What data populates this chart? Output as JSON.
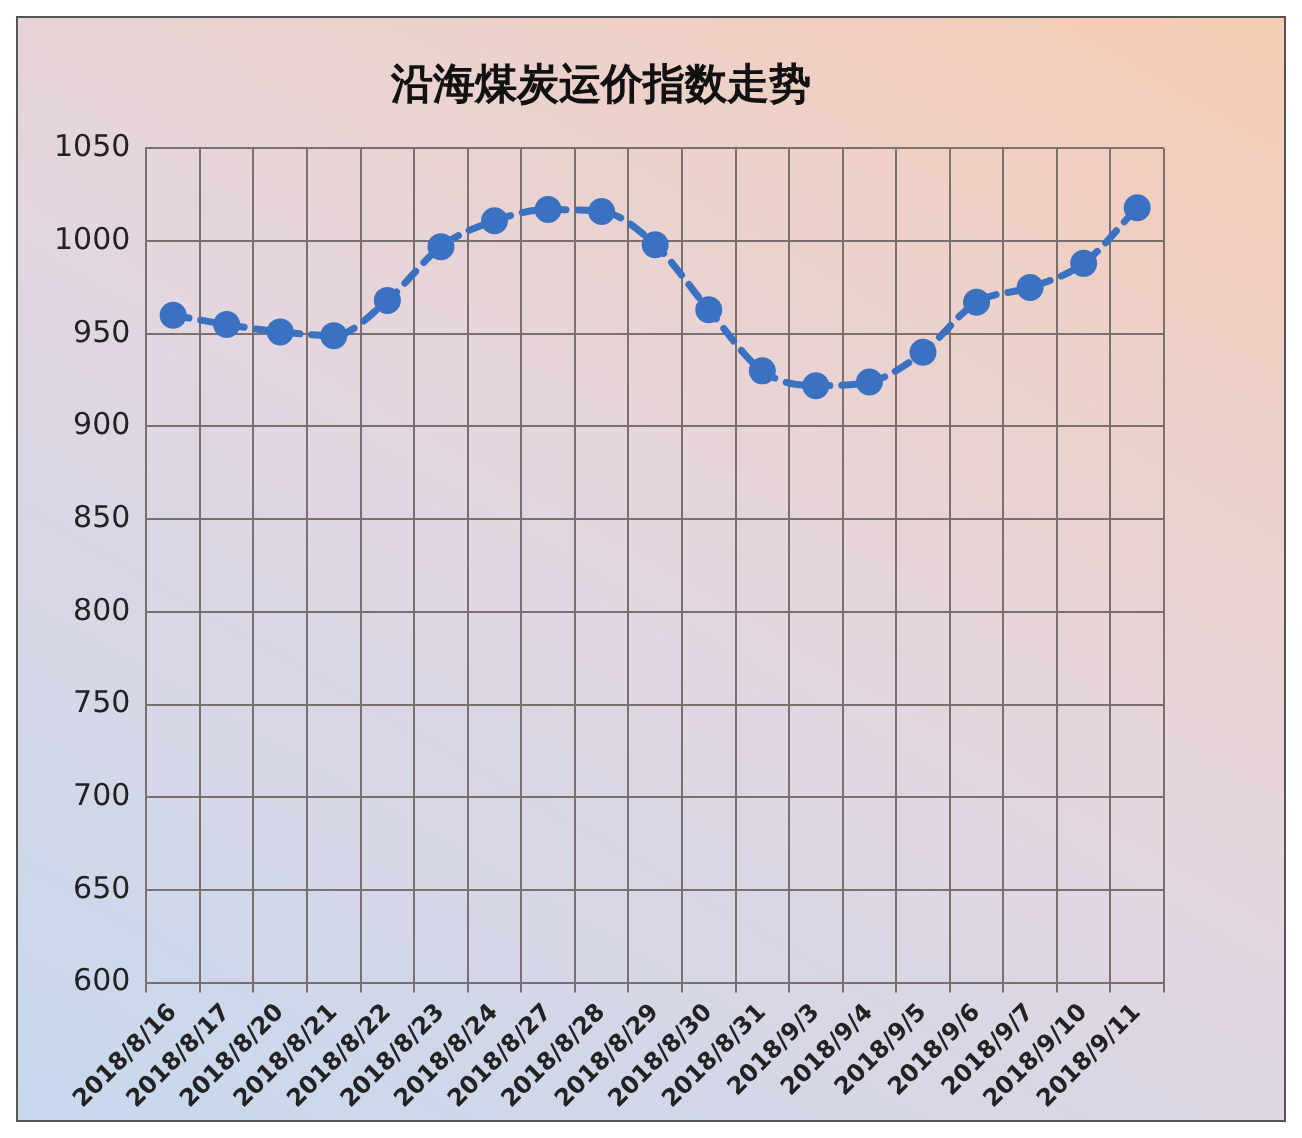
{
  "chart_data": {
    "type": "line",
    "title": "沿海煤炭运价指数走势",
    "categories": [
      "2018/8/16",
      "2018/8/17",
      "2018/8/20",
      "2018/8/21",
      "2018/8/22",
      "2018/8/23",
      "2018/8/24",
      "2018/8/27",
      "2018/8/28",
      "2018/8/29",
      "2018/8/30",
      "2018/8/31",
      "2018/9/3",
      "2018/9/4",
      "2018/9/5",
      "2018/9/6",
      "2018/9/7",
      "2018/9/10",
      "2018/9/11"
    ],
    "series": [
      {
        "color": "#3a71c1",
        "values": [
          960,
          955,
          951,
          949,
          968,
          997,
          1011,
          1017,
          1016,
          998,
          963,
          930,
          922,
          924,
          940,
          967,
          975,
          988,
          1018
        ]
      }
    ],
    "ylim": [
      600,
      1050
    ],
    "yticks": [
      600,
      650,
      700,
      750,
      800,
      850,
      900,
      950,
      1000,
      1050
    ],
    "grid": true,
    "legend": false,
    "marker": "circle",
    "line_style": "dashed"
  }
}
